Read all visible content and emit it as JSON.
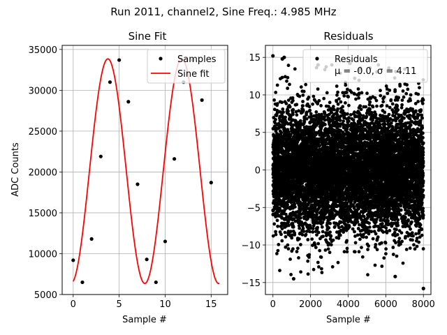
{
  "figure": {
    "suptitle": "Run 2011, channel2, Sine Freq.: 4.985 MHz"
  },
  "chart_data": [
    {
      "type": "line",
      "title": "Sine Fit",
      "xlabel": "Sample #",
      "ylabel": "ADC Counts",
      "xlim": [
        -1.2,
        16.8
      ],
      "ylim": [
        5000,
        35500
      ],
      "xticks": [
        0,
        5,
        10,
        15
      ],
      "yticks": [
        5000,
        10000,
        15000,
        20000,
        25000,
        30000,
        35000
      ],
      "grid": true,
      "legend_position": "top-right",
      "series": [
        {
          "name": "Samples",
          "kind": "scatter",
          "color": "#000000",
          "x": [
            0,
            1,
            2,
            3,
            4,
            5,
            6,
            7,
            8,
            9,
            10,
            11,
            12,
            13,
            14,
            15
          ],
          "y": [
            9200,
            6500,
            11800,
            21900,
            31000,
            33700,
            28600,
            18500,
            9300,
            6500,
            11500,
            21600,
            31000,
            33700,
            28800,
            18700
          ]
        },
        {
          "name": "Sine fit",
          "kind": "line",
          "color": "#ff0000",
          "function": "sine",
          "x_range": [
            0,
            15.9
          ],
          "offset": 20100,
          "amplitude": 13750,
          "period_samples": 8.03,
          "phase_rad": -1.38
        }
      ]
    },
    {
      "type": "scatter",
      "title": "Residuals",
      "xlabel": "Sample #",
      "ylabel": "",
      "xlim": [
        -400,
        8400
      ],
      "ylim": [
        -16.6,
        16.6
      ],
      "xticks": [
        0,
        2000,
        4000,
        6000,
        8000
      ],
      "yticks": [
        -15,
        -10,
        -5,
        0,
        5,
        10,
        15
      ],
      "grid": true,
      "legend_position": "top-right",
      "series": [
        {
          "name": "Residuals",
          "legend_stats": "μ = -0.0, σ = 4.11",
          "color": "#000000",
          "n_points": 8000,
          "mean": 0.0,
          "std": 4.11,
          "notable_points": [
            [
              0,
              15.2
            ],
            [
              500,
              14.8
            ],
            [
              600,
              15.0
            ],
            [
              2400,
              14.0
            ],
            [
              4100,
              14.2
            ],
            [
              8000,
              -15.8
            ],
            [
              1100,
              -14.5
            ],
            [
              6500,
              -14.2
            ]
          ]
        }
      ]
    }
  ]
}
